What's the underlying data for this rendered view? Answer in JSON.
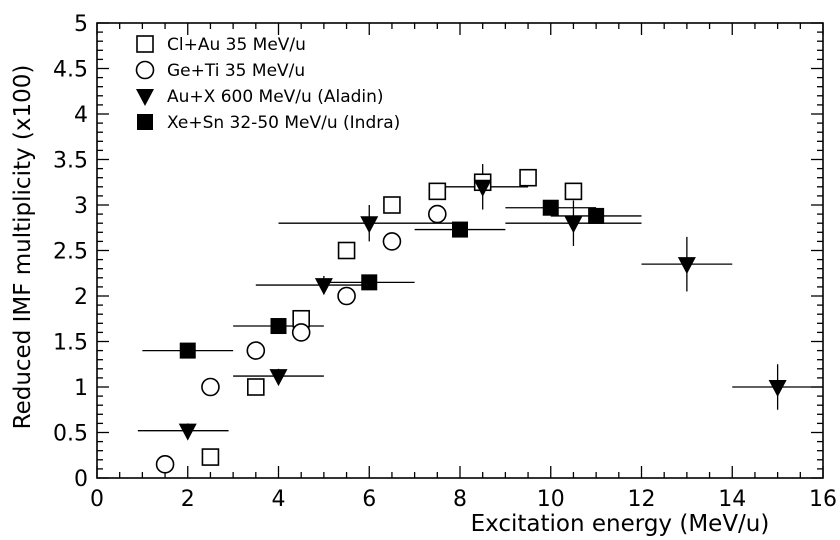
{
  "chart_data": {
    "type": "scatter",
    "xlabel": "Excitation energy (MeV/u)",
    "ylabel": "Reduced IMF multiplicity (x100)",
    "xlim": [
      0,
      16
    ],
    "ylim": [
      0,
      5
    ],
    "x_ticks": [
      "0",
      "2",
      "4",
      "6",
      "8",
      "10",
      "12",
      "14",
      "16"
    ],
    "y_ticks": [
      "0",
      "0.5",
      "1",
      "1.5",
      "2",
      "2.5",
      "3",
      "3.5",
      "4",
      "4.5",
      "5"
    ],
    "legend_position": "top-left",
    "series": [
      {
        "name": "Cl+Au 35 MeV/u",
        "marker": "open-square",
        "points": [
          {
            "x": 2.5,
            "y": 0.23
          },
          {
            "x": 3.5,
            "y": 1.0
          },
          {
            "x": 4.5,
            "y": 1.75
          },
          {
            "x": 5.5,
            "y": 2.5
          },
          {
            "x": 6.5,
            "y": 3.0
          },
          {
            "x": 7.5,
            "y": 3.15
          },
          {
            "x": 8.5,
            "y": 3.25
          },
          {
            "x": 9.5,
            "y": 3.3
          },
          {
            "x": 10.5,
            "y": 3.15
          }
        ]
      },
      {
        "name": "Ge+Ti 35 MeV/u",
        "marker": "open-circle",
        "points": [
          {
            "x": 1.5,
            "y": 0.15
          },
          {
            "x": 2.5,
            "y": 1.0
          },
          {
            "x": 3.5,
            "y": 1.4
          },
          {
            "x": 4.5,
            "y": 1.6
          },
          {
            "x": 5.5,
            "y": 2.0
          },
          {
            "x": 6.5,
            "y": 2.6
          },
          {
            "x": 7.5,
            "y": 2.9
          }
        ]
      },
      {
        "name": "Au+X 600 MeV/u (Aladin)",
        "marker": "filled-triangle-down",
        "points": [
          {
            "x": 2.0,
            "y": 0.52,
            "xerr": [
              1.1,
              0.9
            ],
            "yerr": 0.08
          },
          {
            "x": 4.0,
            "y": 1.12,
            "xerr": [
              1.0,
              1.0
            ],
            "yerr": 0.08
          },
          {
            "x": 5.0,
            "y": 2.12,
            "xerr": [
              1.5,
              1.0
            ],
            "yerr": 0.1
          },
          {
            "x": 6.0,
            "y": 2.8,
            "xerr": [
              2.0,
              2.0
            ],
            "yerr": 0.2
          },
          {
            "x": 8.5,
            "y": 3.2,
            "xerr": [
              1.0,
              1.0
            ],
            "yerr": 0.25
          },
          {
            "x": 10.5,
            "y": 2.8,
            "xerr": [
              1.5,
              1.5
            ],
            "yerr": 0.25
          },
          {
            "x": 13.0,
            "y": 2.35,
            "xerr": [
              1.0,
              1.0
            ],
            "yerr": 0.3
          },
          {
            "x": 15.0,
            "y": 1.0,
            "xerr": [
              1.0,
              1.0
            ],
            "yerr": 0.25
          }
        ]
      },
      {
        "name": "Xe+Sn 32-50 MeV/u (Indra)",
        "marker": "filled-square",
        "points": [
          {
            "x": 2.0,
            "y": 1.4,
            "xerr": [
              1.0,
              1.0
            ]
          },
          {
            "x": 4.0,
            "y": 1.67,
            "xerr": [
              1.0,
              1.0
            ]
          },
          {
            "x": 6.0,
            "y": 2.15,
            "xerr": [
              1.0,
              1.0
            ]
          },
          {
            "x": 8.0,
            "y": 2.73,
            "xerr": [
              1.0,
              1.0
            ]
          },
          {
            "x": 10.0,
            "y": 2.97,
            "xerr": [
              1.0,
              1.0
            ]
          },
          {
            "x": 11.0,
            "y": 2.88,
            "xerr": [
              1.0,
              1.0
            ]
          }
        ]
      }
    ]
  }
}
